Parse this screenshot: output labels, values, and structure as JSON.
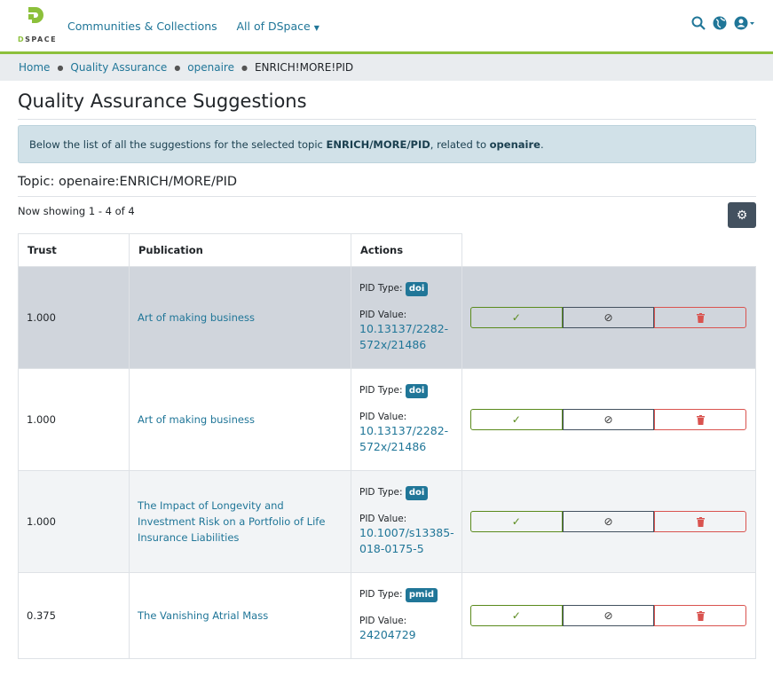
{
  "header": {
    "logo_text": "DSPACE",
    "nav": [
      "Communities & Collections",
      "All of DSpace"
    ]
  },
  "breadcrumb": [
    "Home",
    "Quality Assurance",
    "openaire",
    "ENRICH!MORE!PID"
  ],
  "title": "Quality Assurance Suggestions",
  "alert": {
    "prefix": "Below the list of all the suggestions for the selected topic ",
    "topic": "ENRICH/MORE/PID",
    "middle": ", related to ",
    "source": "openaire",
    "suffix": "."
  },
  "topic": "Topic: openaire:ENRICH/MORE/PID",
  "showing": "Now showing 1 - 4 of 4",
  "table": {
    "headers": [
      "Trust",
      "Publication",
      "Actions"
    ],
    "pid_type_label": "PID Type:",
    "pid_value_label": "PID Value:",
    "rows": [
      {
        "trust": "1.000",
        "publication": "Art of making business",
        "pid_type": "doi",
        "pid_value": "10.13137/2282-572x/21486"
      },
      {
        "trust": "1.000",
        "publication": "Art of making business",
        "pid_type": "doi",
        "pid_value": "10.13137/2282-572x/21486"
      },
      {
        "trust": "1.000",
        "publication": "The Impact of Longevity and Investment Risk on a Portfolio of Life Insurance Liabilities",
        "pid_type": "doi",
        "pid_value": "10.1007/s13385-018-0175-5"
      },
      {
        "trust": "0.375",
        "publication": "The Vanishing Atrial Mass",
        "pid_type": "pmid",
        "pid_value": "24204729"
      }
    ]
  },
  "colors": {
    "brand": "#8cc03b",
    "link": "#207698",
    "accept": "#5a8a1c",
    "reject": "#d9534f"
  }
}
